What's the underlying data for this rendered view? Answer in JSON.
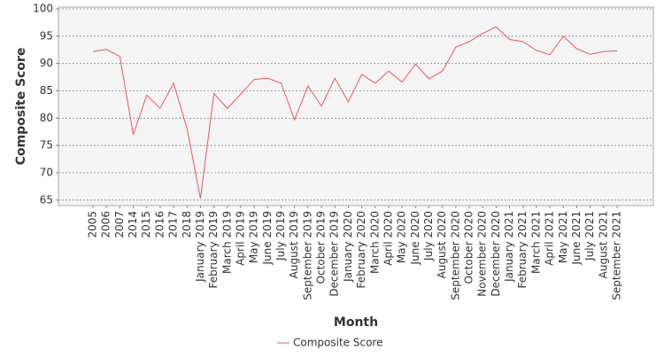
{
  "chart_data": {
    "type": "line",
    "x_label": "Month",
    "y_label": "Composite Score",
    "categories": [
      "2005",
      "2006",
      "2007",
      "2014",
      "2015",
      "2016",
      "2017",
      "2018",
      "January 2019",
      "February 2019",
      "March 2019",
      "April 2019",
      "May 2019",
      "June 2019",
      "July 2019",
      "August 2019",
      "September 2019",
      "October 2019",
      "December 2019",
      "January 2020",
      "February 2020",
      "March 2020",
      "April 2020",
      "May 2020",
      "June 2020",
      "July 2020",
      "August 2020",
      "September 2020",
      "October 2020",
      "November 2020",
      "December 2020",
      "January 2021",
      "February 2021",
      "March 2021",
      "April 2021",
      "May 2021",
      "June 2021",
      "July 2021",
      "August 2021",
      "September 2021"
    ],
    "series": [
      {
        "name": "Composite Score",
        "color": "#e8585a",
        "values": [
          92.2,
          92.6,
          91.3,
          77,
          84.2,
          81.8,
          86.4,
          78.1,
          65.3,
          84.5,
          81.8,
          84.4,
          87.1,
          87.3,
          86.4,
          79.7,
          85.9,
          82.2,
          87.3,
          83,
          88,
          86.4,
          88.6,
          86.6,
          89.9,
          87.2,
          88.6,
          93,
          94,
          95.5,
          96.7,
          94.4,
          94,
          92.4,
          91.6,
          95,
          92.7,
          91.7,
          92.2,
          92.3
        ]
      }
    ],
    "ylim": [
      64,
      100
    ],
    "yticks": [
      65,
      70,
      75,
      80,
      85,
      90,
      95,
      100
    ],
    "grid": true,
    "legend": "bottom"
  }
}
